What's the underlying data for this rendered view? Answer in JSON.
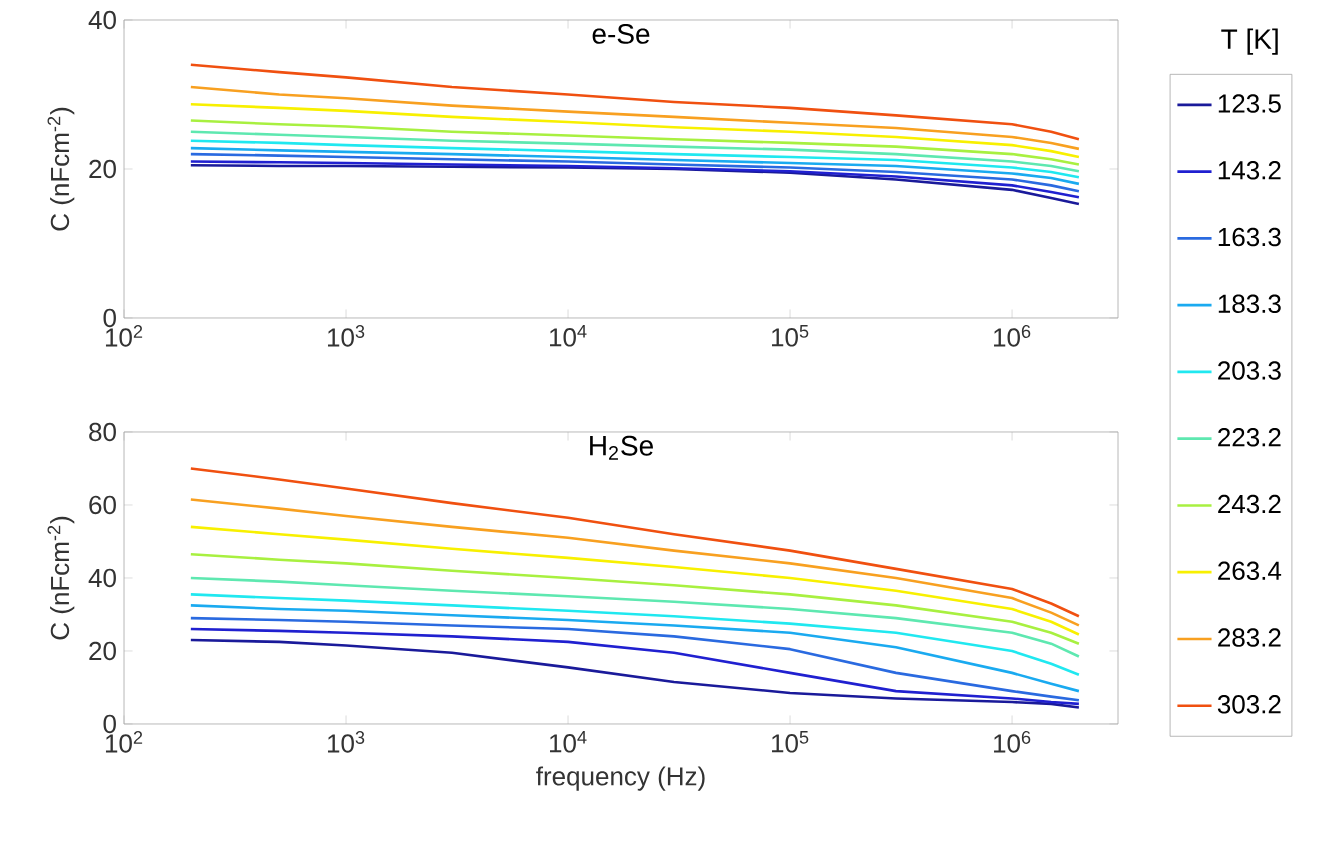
{
  "chart_data": [
    {
      "type": "line",
      "title": "e-Se",
      "ylabel": "C (nFcm$^{-2}$)",
      "legend_title": "T [K]",
      "legend": "right",
      "log": "x",
      "x": [
        200,
        500,
        1000,
        3000,
        10000,
        30000,
        100000,
        300000,
        1000000,
        1500000,
        2000000
      ],
      "xlim": [
        100,
        3000000
      ],
      "xticks": [
        {
          "value": 100,
          "label": "10$^{2}$"
        },
        {
          "value": 1000,
          "label": "10$^{3}$"
        },
        {
          "value": 10000,
          "label": "10$^{4}$"
        },
        {
          "value": 100000,
          "label": "10$^{5}$"
        },
        {
          "value": 1000000,
          "label": "10$^{6}$"
        }
      ],
      "ylim": [
        0,
        40
      ],
      "yticks": [
        0,
        20,
        40
      ],
      "series": [
        {
          "name": "123.5",
          "color": "#1a1a9a",
          "values": [
            20.5,
            20.4,
            20.4,
            20.3,
            20.2,
            20.0,
            19.5,
            18.6,
            17.2,
            16.1,
            15.3
          ]
        },
        {
          "name": "143.2",
          "color": "#2020d0",
          "values": [
            21,
            20.9,
            20.8,
            20.6,
            20.4,
            20.1,
            19.7,
            19.0,
            17.8,
            16.9,
            16.2
          ]
        },
        {
          "name": "163.3",
          "color": "#2a6ae0",
          "values": [
            22,
            21.8,
            21.6,
            21.3,
            21.0,
            20.6,
            20.2,
            19.6,
            18.6,
            17.8,
            17.0
          ]
        },
        {
          "name": "183.3",
          "color": "#1aaaf0",
          "values": [
            22.8,
            22.5,
            22.3,
            22.0,
            21.6,
            21.2,
            20.8,
            20.4,
            19.4,
            18.8,
            18.0
          ]
        },
        {
          "name": "203.3",
          "color": "#20e8f0",
          "values": [
            23.8,
            23.5,
            23.2,
            22.8,
            22.4,
            22.0,
            21.6,
            21.2,
            20.2,
            19.6,
            18.9
          ]
        },
        {
          "name": "223.2",
          "color": "#5ee8b0",
          "values": [
            25,
            24.6,
            24.3,
            23.8,
            23.4,
            23.0,
            22.6,
            22.0,
            21.0,
            20.4,
            19.7
          ]
        },
        {
          "name": "243.2",
          "color": "#a8f040",
          "values": [
            26.5,
            26.0,
            25.7,
            25.0,
            24.5,
            24.0,
            23.5,
            23.0,
            22.0,
            21.3,
            20.6
          ]
        },
        {
          "name": "263.4",
          "color": "#f8f000",
          "values": [
            28.7,
            28.2,
            27.8,
            27.0,
            26.3,
            25.6,
            25.0,
            24.3,
            23.2,
            22.4,
            21.6
          ]
        },
        {
          "name": "283.2",
          "color": "#f8a020",
          "values": [
            31,
            30.0,
            29.5,
            28.5,
            27.7,
            27.0,
            26.2,
            25.5,
            24.3,
            23.5,
            22.7
          ]
        },
        {
          "name": "303.2",
          "color": "#f05010",
          "values": [
            34,
            33.0,
            32.3,
            31.0,
            30.0,
            29.0,
            28.2,
            27.2,
            26.0,
            25.0,
            24.0
          ]
        }
      ]
    },
    {
      "type": "line",
      "title": "H$_{2}$Se",
      "xlabel": "frequency (Hz)",
      "ylabel": "C (nFcm$^{-2}$)",
      "log": "x",
      "x": [
        200,
        500,
        1000,
        3000,
        10000,
        30000,
        100000,
        300000,
        1000000,
        1500000,
        2000000
      ],
      "xlim": [
        100,
        3000000
      ],
      "xticks": [
        {
          "value": 100,
          "label": "10$^{2}$"
        },
        {
          "value": 1000,
          "label": "10$^{3}$"
        },
        {
          "value": 10000,
          "label": "10$^{4}$"
        },
        {
          "value": 100000,
          "label": "10$^{5}$"
        },
        {
          "value": 1000000,
          "label": "10$^{6}$"
        }
      ],
      "ylim": [
        0,
        80
      ],
      "yticks": [
        0,
        20,
        40,
        60,
        80
      ],
      "series": [
        {
          "color": "#1a1a9a",
          "values": [
            23,
            22.5,
            21.5,
            19.5,
            15.5,
            11.5,
            8.5,
            7.0,
            6.0,
            5.5,
            4.5
          ]
        },
        {
          "color": "#2020d0",
          "values": [
            26,
            25.5,
            25.0,
            24.0,
            22.5,
            19.5,
            14.0,
            9.0,
            7.0,
            6.0,
            5.5
          ]
        },
        {
          "color": "#2a6ae0",
          "values": [
            29,
            28.5,
            28.0,
            27.0,
            26.0,
            24.0,
            20.5,
            14.0,
            9.0,
            7.5,
            6.5
          ]
        },
        {
          "color": "#1aaaf0",
          "values": [
            32.5,
            31.5,
            31.0,
            29.8,
            28.5,
            27.0,
            25.0,
            21.0,
            14.0,
            11.0,
            9.0
          ]
        },
        {
          "color": "#20e8f0",
          "values": [
            35.5,
            34.5,
            33.8,
            32.5,
            31.0,
            29.5,
            27.5,
            25.0,
            20.0,
            16.5,
            13.5
          ]
        },
        {
          "color": "#5ee8b0",
          "values": [
            40,
            39.0,
            38.0,
            36.5,
            35.0,
            33.5,
            31.5,
            29.0,
            25.0,
            22.0,
            18.5
          ]
        },
        {
          "color": "#a8f040",
          "values": [
            46.5,
            45.0,
            44.0,
            42.0,
            40.0,
            38.0,
            35.5,
            32.5,
            28.0,
            25.0,
            22.0
          ]
        },
        {
          "color": "#f8f000",
          "values": [
            54,
            52.0,
            50.5,
            48.0,
            45.5,
            43.0,
            40.0,
            36.5,
            31.5,
            28.0,
            24.5
          ]
        },
        {
          "color": "#f8a020",
          "values": [
            61.5,
            59.0,
            57.0,
            54.0,
            51.0,
            47.5,
            44.0,
            40.0,
            34.5,
            30.5,
            27.0
          ]
        },
        {
          "color": "#f05010",
          "values": [
            70,
            67.0,
            64.5,
            60.5,
            56.5,
            52.0,
            47.5,
            42.5,
            37.0,
            33.0,
            29.5
          ]
        }
      ]
    }
  ]
}
